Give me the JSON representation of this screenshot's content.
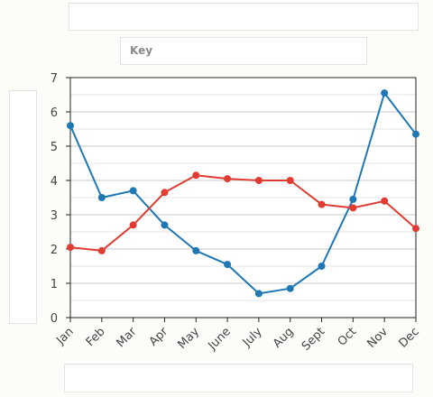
{
  "key_box": {
    "label": "Key"
  },
  "chart_data": {
    "type": "line",
    "title": "",
    "xlabel": "",
    "ylabel": "",
    "categories": [
      "Jan",
      "Feb",
      "Mar",
      "Apr",
      "May",
      "June",
      "July",
      "Aug",
      "Sept",
      "Oct",
      "Nov",
      "Dec"
    ],
    "ylim": [
      0,
      7
    ],
    "yticks": [
      0,
      1,
      2,
      3,
      4,
      5,
      6,
      7
    ],
    "grid": true,
    "series": [
      {
        "color": "#1f77b4",
        "values": [
          5.6,
          3.5,
          3.7,
          2.7,
          1.95,
          1.55,
          0.7,
          0.85,
          1.5,
          3.45,
          6.55,
          5.35
        ]
      },
      {
        "color": "#e03c31",
        "values": [
          2.05,
          1.95,
          2.7,
          3.65,
          4.15,
          4.05,
          4.0,
          4.0,
          3.3,
          3.2,
          3.4,
          2.6
        ]
      }
    ]
  }
}
